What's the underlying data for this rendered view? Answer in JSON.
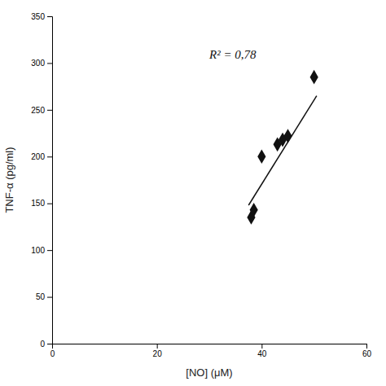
{
  "chart_data": {
    "type": "scatter",
    "xlabel": "[NO] (μM)",
    "ylabel": "TNF-α (pg/ml)",
    "annotation": "R² = 0,78",
    "xlim": [
      0,
      60
    ],
    "ylim": [
      0,
      350
    ],
    "xticks": [
      0,
      20,
      40,
      60
    ],
    "yticks": [
      0,
      50,
      100,
      150,
      200,
      250,
      300,
      350
    ],
    "grid": false,
    "series": [
      {
        "type": "scatter",
        "marker": "diamond",
        "color": "#111111",
        "x": [
          38.0,
          38.5,
          40.0,
          43.0,
          44.0,
          45.0,
          50.0
        ],
        "values": [
          135,
          143,
          200,
          213,
          218,
          222,
          285
        ]
      },
      {
        "type": "line",
        "color": "#111111",
        "x": [
          37.5,
          50.5
        ],
        "values": [
          148,
          265
        ]
      }
    ]
  }
}
